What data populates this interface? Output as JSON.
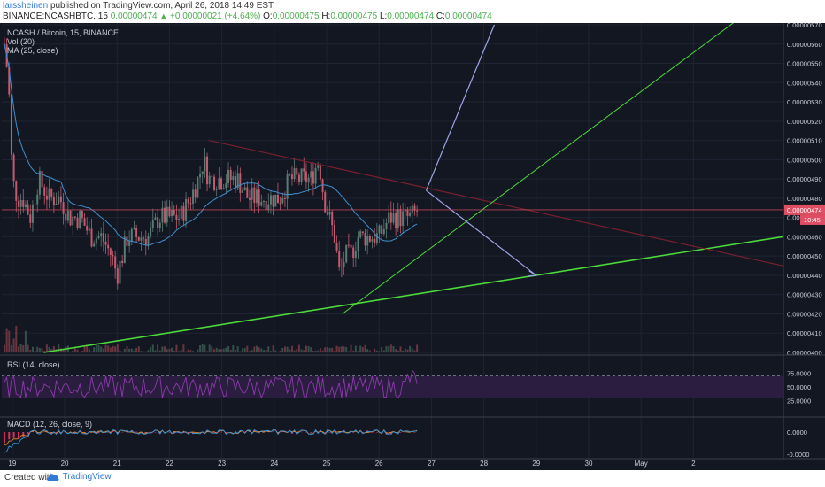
{
  "header": {
    "author": "larssheinen",
    "published_text": "published on TradingView.com, April 26, 2018 14:49 EST",
    "symbol": "BINANCE:NCASHBTC, 15",
    "open_val": "0.00000474",
    "change_text": "+0.00000021 (+4.64%)",
    "o_label": "O:",
    "o_val": "0.00000475",
    "h_label": "H:",
    "h_val": "0.00000475",
    "l_label": "L:",
    "l_val": "0.00000474",
    "c_label": "C:",
    "c_val": "0.00000474"
  },
  "legend": {
    "title": "NCASH / Bitcoin, 15, BINANCE",
    "vol": "Vol (20)",
    "ma": "MA (25, close)",
    "rsi": "RSI (14, close)",
    "macd": "MACD (12, 26, close, 9)"
  },
  "footer": {
    "created_with": "Created with",
    "brand": "TradingView"
  },
  "colors": {
    "background": "#131722",
    "grid": "#1f2433",
    "candle_up": "#5b7b74",
    "candle_down": "#c25a6d",
    "ma_line": "#3f8fd0",
    "trend_green": "#4cd93a",
    "trend_dark_red": "#7a1f2e",
    "projection_lavender": "#9da6e6",
    "price_label": "#e04e63",
    "rsi_band": "#2a1d3f",
    "rsi_line": "#8c3bab",
    "macd_line": "#3a93d6",
    "macd_signal": "#e08a30",
    "macd_hist": "#d6315a"
  },
  "chart_data": {
    "type": "line",
    "title": "NCASH / Bitcoin, 15, BINANCE",
    "price_axis": {
      "ylim": [
        4e-06,
        5.7e-06
      ],
      "tick_labels": [
        "0.00000570",
        "0.00000560",
        "0.00000550",
        "0.00000540",
        "0.00000530",
        "0.00000520",
        "0.00000510",
        "0.00000500",
        "0.00000490",
        "0.00000480",
        "0.00000470",
        "0.00000460",
        "0.00000450",
        "0.00000440",
        "0.00000430",
        "0.00000420",
        "0.00000410",
        "0.00000400"
      ],
      "last_price_label": "0.00000474",
      "countdown_label": "10:45"
    },
    "x_axis": {
      "tick_labels": [
        "19",
        "20",
        "21",
        "22",
        "23",
        "24",
        "25",
        "26",
        "27",
        "28",
        "29",
        "30",
        "May",
        "2"
      ],
      "range_days": [
        18.8,
        33.7
      ]
    },
    "price_series": {
      "name": "NCASHBTC 15m (approx.)",
      "x": [
        18.85,
        18.93,
        19.0,
        19.1,
        19.2,
        19.35,
        19.5,
        19.7,
        19.9,
        20.1,
        20.3,
        20.5,
        20.7,
        20.9,
        21.0,
        21.2,
        21.4,
        21.6,
        21.8,
        22.0,
        22.2,
        22.4,
        22.55,
        22.65,
        22.75,
        22.9,
        23.1,
        23.3,
        23.5,
        23.7,
        23.9,
        24.1,
        24.3,
        24.5,
        24.7,
        24.85,
        24.95,
        25.05,
        25.15,
        25.25,
        25.35,
        25.45,
        25.6,
        25.8,
        26.0,
        26.2,
        26.4,
        26.6,
        26.75
      ],
      "y": [
        5.6e-06,
        5.4e-06,
        4.9e-06,
        4.8e-06,
        4.8e-06,
        4.7e-06,
        4.9e-06,
        4.8e-06,
        4.8e-06,
        4.7e-06,
        4.7e-06,
        4.6e-06,
        4.6e-06,
        4.5e-06,
        4.4e-06,
        4.6e-06,
        4.6e-06,
        4.6e-06,
        4.7e-06,
        4.7e-06,
        4.7e-06,
        4.8e-06,
        4.9e-06,
        5e-06,
        4.9e-06,
        4.9e-06,
        4.9e-06,
        4.9e-06,
        4.8e-06,
        4.8e-06,
        4.8e-06,
        4.8e-06,
        4.9e-06,
        4.9e-06,
        4.9e-06,
        5e-06,
        4.8e-06,
        4.7e-06,
        4.6e-06,
        4.4e-06,
        4.5e-06,
        4.5e-06,
        4.6e-06,
        4.6e-06,
        4.6e-06,
        4.7e-06,
        4.7e-06,
        4.7e-06,
        4.74e-06
      ]
    },
    "trend_lines": [
      {
        "name": "support",
        "x": [
          19.6,
          33.7
        ],
        "y": [
          4e-06,
          4.6e-06
        ]
      },
      {
        "name": "resistance",
        "x": [
          22.75,
          33.7
        ],
        "y": [
          5.1e-06,
          4.45e-06
        ]
      },
      {
        "name": "steep-support",
        "x": [
          25.3,
          33.7
        ],
        "y": [
          4.2e-06,
          5.9e-06
        ]
      },
      {
        "name": "projection-up",
        "x": [
          26.9,
          28.2
        ],
        "y": [
          4.84e-06,
          5.7e-06
        ]
      },
      {
        "name": "projection-down",
        "x": [
          26.9,
          29.0
        ],
        "y": [
          4.84e-06,
          4.4e-06
        ]
      }
    ],
    "rsi": {
      "name": "RSI (14, close)",
      "tick_labels": [
        "75.0000",
        "50.0000",
        "25.0000"
      ],
      "levels": [
        70,
        30
      ],
      "ylim": [
        0,
        100
      ]
    },
    "macd": {
      "name": "MACD (12, 26, close, 9)",
      "tick_labels": [
        "0.0000",
        "-0.0000"
      ]
    },
    "grid": true,
    "legend_position": "top-left"
  }
}
